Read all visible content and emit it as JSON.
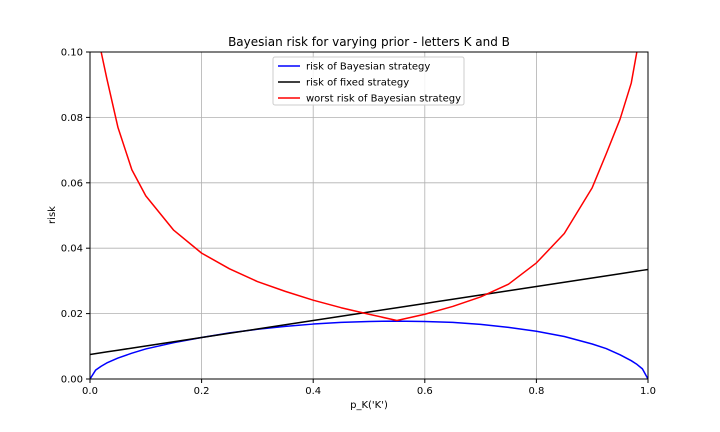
{
  "chart_data": {
    "type": "line",
    "title": "Bayesian risk for varying prior - letters K and B",
    "xlabel": "p_K('K')",
    "ylabel": "risk",
    "xlim": [
      0.0,
      1.0
    ],
    "ylim": [
      0.0,
      0.1
    ],
    "xticks": [
      "0.0",
      "0.2",
      "0.4",
      "0.6",
      "0.8",
      "1.0"
    ],
    "yticks": [
      "0.00",
      "0.02",
      "0.04",
      "0.06",
      "0.08",
      "0.10"
    ],
    "grid": true,
    "legend_position": "upper center",
    "x": [
      0.0,
      0.01,
      0.02,
      0.03,
      0.05,
      0.075,
      0.1,
      0.15,
      0.2,
      0.25,
      0.3,
      0.35,
      0.4,
      0.45,
      0.5,
      0.55,
      0.6,
      0.65,
      0.7,
      0.75,
      0.8,
      0.85,
      0.9,
      0.925,
      0.95,
      0.97,
      0.98,
      0.99,
      1.0
    ],
    "series": [
      {
        "name": "risk of Bayesian strategy",
        "color": "#0000ff",
        "values": [
          0.0,
          0.0027,
          0.0039,
          0.0049,
          0.0064,
          0.0079,
          0.0092,
          0.0111,
          0.0127,
          0.0141,
          0.0152,
          0.0161,
          0.0168,
          0.0173,
          0.0176,
          0.0177,
          0.0176,
          0.0173,
          0.0167,
          0.0158,
          0.0146,
          0.013,
          0.0107,
          0.0093,
          0.0074,
          0.0056,
          0.0045,
          0.0031,
          0.0
        ]
      },
      {
        "name": "risk of fixed strategy",
        "color": "#000000",
        "values": [
          0.0075,
          0.00776,
          0.00802,
          0.00828,
          0.0088,
          0.00945,
          0.0101,
          0.0114,
          0.0127,
          0.014,
          0.0153,
          0.0166,
          0.0179,
          0.0192,
          0.0205,
          0.0218,
          0.0231,
          0.0244,
          0.0257,
          0.027,
          0.0283,
          0.0296,
          0.0309,
          0.03155,
          0.0322,
          0.03272,
          0.03298,
          0.03324,
          0.0335
        ]
      },
      {
        "name": "worst risk of Bayesian strategy",
        "color": "#ff0000",
        "values": [
          null,
          null,
          0.1,
          0.092,
          0.077,
          0.064,
          0.056,
          0.0455,
          0.0385,
          0.0337,
          0.0298,
          0.0268,
          0.0241,
          0.0218,
          0.0198,
          0.0179,
          0.0198,
          0.0222,
          0.0251,
          0.029,
          0.0355,
          0.0445,
          0.0585,
          0.0688,
          0.0795,
          0.0905,
          0.1,
          null,
          null
        ]
      }
    ]
  }
}
